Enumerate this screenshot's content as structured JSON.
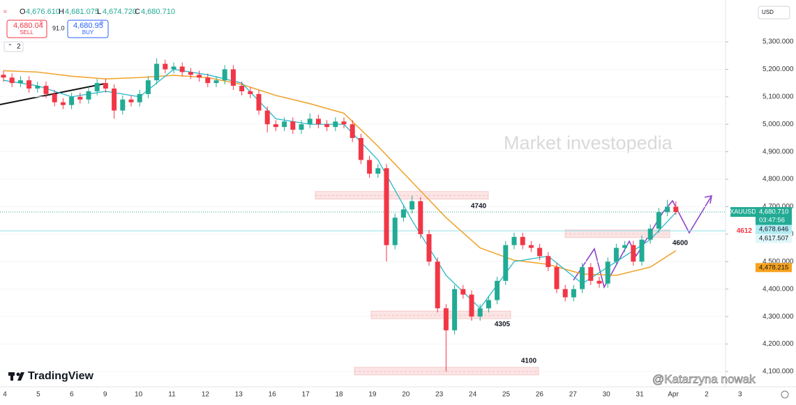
{
  "chart_data": {
    "type": "candlestick",
    "header": {
      "o_key": "O",
      "o": "4,676.610",
      "h_key": "H",
      "h": "4,681.075",
      "l_key": "L",
      "l": "4,674.720",
      "c_key": "C",
      "c": "4,680.710"
    },
    "sell": {
      "price": "4,680.04",
      "pip": "0",
      "label": "SELL"
    },
    "spread": "91.0",
    "buy": {
      "price": "4,680.95",
      "pip": "0",
      "label": "BUY"
    },
    "indicator_count": "2",
    "currency": "USD",
    "watermark": "Market investopedia",
    "brand": "TradingView",
    "signature": "@Katarzyna nowak",
    "up_color": "#22ab94",
    "down_color": "#f23645",
    "ylim": [
      4044,
      5432
    ],
    "yticks": [
      {
        "value": 4100,
        "label": "4,100.000"
      },
      {
        "value": 4200,
        "label": "4,200.000"
      },
      {
        "value": 4300,
        "label": "4,300.000"
      },
      {
        "value": 4400,
        "label": "4,400.000"
      },
      {
        "value": 4500,
        "label": "4,500.000"
      },
      {
        "value": 4600,
        "label": "4,600.000"
      },
      {
        "value": 4700,
        "label": "4,700.000"
      },
      {
        "value": 4800,
        "label": "4,800.000"
      },
      {
        "value": 4900,
        "label": "4,900.000"
      },
      {
        "value": 5000,
        "label": "5,000.000"
      },
      {
        "value": 5100,
        "label": "5,100.000"
      },
      {
        "value": 5200,
        "label": "5,200.000"
      },
      {
        "value": 5300,
        "label": "5,300.000"
      }
    ],
    "x_labels": [
      "4",
      "5",
      "6",
      "9",
      "10",
      "11",
      "12",
      "13",
      "16",
      "17",
      "18",
      "19",
      "20",
      "23",
      "24",
      "25",
      "26",
      "27",
      "30",
      "31",
      "Apr",
      "2",
      "3"
    ],
    "ohlc": [
      [
        5180,
        5195,
        5155,
        5170
      ],
      [
        5170,
        5185,
        5135,
        5150
      ],
      [
        5150,
        5175,
        5135,
        5160
      ],
      [
        5160,
        5175,
        5115,
        5130
      ],
      [
        5130,
        5155,
        5115,
        5140
      ],
      [
        5140,
        5155,
        5095,
        5110
      ],
      [
        5110,
        5125,
        5065,
        5080
      ],
      [
        5080,
        5095,
        5055,
        5070
      ],
      [
        5070,
        5115,
        5055,
        5100
      ],
      [
        5100,
        5115,
        5075,
        5090
      ],
      [
        5090,
        5135,
        5075,
        5120
      ],
      [
        5120,
        5165,
        5105,
        5150
      ],
      [
        5150,
        5165,
        5115,
        5130
      ],
      [
        5130,
        5145,
        5020,
        5050
      ],
      [
        5050,
        5105,
        5035,
        5090
      ],
      [
        5090,
        5105,
        5065,
        5080
      ],
      [
        5080,
        5125,
        5065,
        5110
      ],
      [
        5110,
        5175,
        5095,
        5160
      ],
      [
        5160,
        5240,
        5145,
        5220
      ],
      [
        5220,
        5235,
        5185,
        5200
      ],
      [
        5200,
        5225,
        5185,
        5210
      ],
      [
        5210,
        5225,
        5175,
        5190
      ],
      [
        5190,
        5205,
        5165,
        5180
      ],
      [
        5180,
        5195,
        5155,
        5170
      ],
      [
        5170,
        5185,
        5135,
        5150
      ],
      [
        5150,
        5175,
        5135,
        5160
      ],
      [
        5160,
        5215,
        5145,
        5200
      ],
      [
        5200,
        5215,
        5125,
        5140
      ],
      [
        5140,
        5155,
        5105,
        5120
      ],
      [
        5120,
        5135,
        5095,
        5110
      ],
      [
        5110,
        5125,
        5035,
        5050
      ],
      [
        5050,
        5065,
        4970,
        5000
      ],
      [
        5000,
        5015,
        4975,
        4990
      ],
      [
        4990,
        5025,
        4975,
        5010
      ],
      [
        5010,
        5025,
        4965,
        4980
      ],
      [
        4980,
        5015,
        4965,
        5000
      ],
      [
        5000,
        5040,
        4985,
        5020
      ],
      [
        5020,
        5035,
        4985,
        5000
      ],
      [
        5000,
        5015,
        4975,
        4990
      ],
      [
        4990,
        5025,
        4975,
        5010
      ],
      [
        5010,
        5025,
        4985,
        5000
      ],
      [
        5000,
        5015,
        4935,
        4950
      ],
      [
        4950,
        4965,
        4855,
        4870
      ],
      [
        4870,
        4885,
        4805,
        4820
      ],
      [
        4820,
        4855,
        4805,
        4840
      ],
      [
        4840,
        4855,
        4500,
        4560
      ],
      [
        4560,
        4675,
        4545,
        4660
      ],
      [
        4660,
        4705,
        4645,
        4690
      ],
      [
        4690,
        4740,
        4675,
        4720
      ],
      [
        4720,
        4735,
        4585,
        4600
      ],
      [
        4600,
        4615,
        4485,
        4500
      ],
      [
        4500,
        4515,
        4315,
        4330
      ],
      [
        4330,
        4345,
        4100,
        4250
      ],
      [
        4250,
        4415,
        4235,
        4400
      ],
      [
        4400,
        4415,
        4365,
        4380
      ],
      [
        4380,
        4395,
        4285,
        4300
      ],
      [
        4300,
        4345,
        4285,
        4330
      ],
      [
        4330,
        4375,
        4315,
        4360
      ],
      [
        4360,
        4445,
        4345,
        4430
      ],
      [
        4430,
        4575,
        4415,
        4560
      ],
      [
        4560,
        4605,
        4545,
        4590
      ],
      [
        4590,
        4605,
        4545,
        4560
      ],
      [
        4560,
        4575,
        4535,
        4550
      ],
      [
        4550,
        4565,
        4505,
        4520
      ],
      [
        4520,
        4535,
        4465,
        4480
      ],
      [
        4480,
        4495,
        4385,
        4400
      ],
      [
        4400,
        4415,
        4355,
        4370
      ],
      [
        4370,
        4415,
        4355,
        4400
      ],
      [
        4400,
        4495,
        4385,
        4480
      ],
      [
        4480,
        4495,
        4415,
        4430
      ],
      [
        4430,
        4445,
        4405,
        4420
      ],
      [
        4420,
        4515,
        4405,
        4500
      ],
      [
        4500,
        4565,
        4485,
        4550
      ],
      [
        4550,
        4575,
        4535,
        4560
      ],
      [
        4560,
        4575,
        4485,
        4500
      ],
      [
        4500,
        4595,
        4485,
        4580
      ],
      [
        4580,
        4635,
        4565,
        4620
      ],
      [
        4620,
        4695,
        4605,
        4680
      ],
      [
        4680,
        4725,
        4665,
        4700
      ],
      [
        4700,
        4720,
        4670,
        4680.71
      ]
    ],
    "ma_x": [
      0,
      4,
      8,
      12,
      16,
      20,
      24,
      28,
      32,
      36,
      40,
      44,
      48,
      52,
      56,
      60,
      64,
      68,
      72,
      76,
      79
    ],
    "series": [
      {
        "color": "#f0a530",
        "values": [
          5195,
          5190,
          5175,
          5165,
          5170,
          5178,
          5170,
          5145,
          5105,
          5075,
          5040,
          4920,
          4790,
          4660,
          4550,
          4505,
          4490,
          4455,
          4450,
          4480,
          4540
        ]
      },
      {
        "color": "#26b8c9",
        "values": [
          5160,
          5140,
          5100,
          5120,
          5100,
          5200,
          5180,
          5150,
          5020,
          5000,
          5000,
          4870,
          4650,
          4450,
          4330,
          4500,
          4520,
          4420,
          4500,
          4580,
          4678.6
        ]
      }
    ],
    "levels": [
      4740,
      4600,
      4305,
      4100
    ],
    "line_level": 4612,
    "last_price": {
      "symbol": "XAUUSD",
      "value": 4680.71,
      "label": "4,680.710",
      "countdown": "03:47:56"
    },
    "tags": [
      {
        "value": 4678.646,
        "label": "4,678.646",
        "color": "#b2ebf2"
      },
      {
        "value": 4617.507,
        "label": "4,617.507",
        "color": "#e0f7fa"
      },
      {
        "value": 4478.215,
        "label": "4,478.215",
        "color": "#f7a21b"
      }
    ]
  }
}
